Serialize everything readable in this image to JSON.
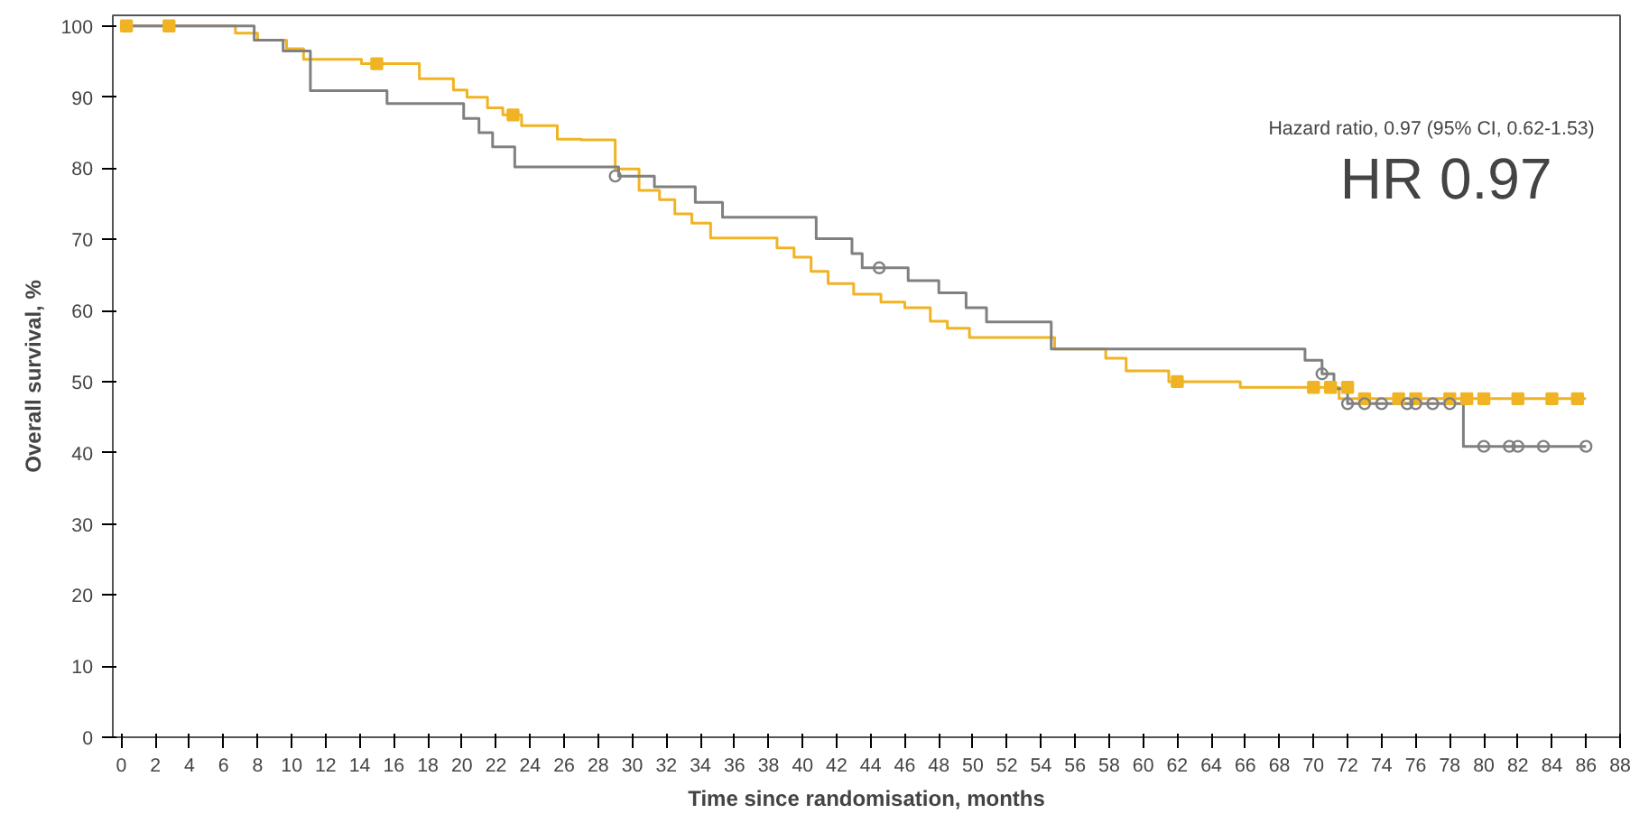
{
  "chart_data": {
    "type": "step",
    "xlabel": "Time since randomisation, months",
    "ylabel": "Overall survival, %",
    "annotations": [
      "Hazard ratio, 0.97 (95% CI, 0.62-1.53)",
      "HR 0.97"
    ],
    "xlim": [
      -0.5,
      88
    ],
    "ylim": [
      0,
      101.5
    ],
    "xticks": [
      0,
      2,
      4,
      6,
      8,
      10,
      12,
      14,
      16,
      18,
      20,
      22,
      24,
      26,
      28,
      30,
      32,
      34,
      36,
      38,
      40,
      42,
      44,
      46,
      48,
      50,
      52,
      54,
      56,
      58,
      60,
      62,
      64,
      66,
      68,
      70,
      72,
      74,
      76,
      78,
      80,
      82,
      84,
      86,
      88
    ],
    "yticks": [
      0,
      10,
      20,
      30,
      40,
      50,
      60,
      70,
      80,
      90,
      100
    ],
    "grid": false,
    "marker": "none",
    "line_style": "solid",
    "series": [
      {
        "color": "#f0b323",
        "x": [
          0,
          6.7,
          8,
          9.7,
          10.7,
          14.1,
          17.5,
          19.5,
          20.3,
          21.5,
          22.4,
          23.5,
          25.6,
          27,
          29,
          30.4,
          31.6,
          32.5,
          33.5,
          34.6,
          38.5,
          39.5,
          40.5,
          41.5,
          43,
          44.6,
          46,
          47.5,
          48.5,
          49.8,
          54.8,
          57.8,
          59,
          61.5,
          65.7,
          71.5,
          86
        ],
        "values": [
          100,
          99,
          98,
          96.8,
          95.3,
          94.7,
          92.6,
          91,
          90,
          88.5,
          87.5,
          86,
          84.1,
          84,
          79.9,
          76.9,
          75.6,
          73.6,
          72.3,
          70.2,
          68.8,
          67.5,
          65.5,
          63.8,
          62.3,
          61.2,
          60.4,
          58.5,
          57.5,
          56.2,
          54.6,
          53.3,
          51.5,
          50,
          49.2,
          47.6,
          47.6
        ]
      },
      {
        "color": "#808080",
        "x": [
          0,
          7.8,
          9.5,
          11.1,
          15.6,
          20.1,
          21,
          21.8,
          23.1,
          29.2,
          31.3,
          33.7,
          35.3,
          40.8,
          42.9,
          43.5,
          46.2,
          48,
          49.6,
          50.8,
          54.6,
          69.5,
          70.5,
          71.2,
          72,
          78.8,
          86
        ],
        "values": [
          100,
          98,
          96.5,
          90.9,
          89.1,
          87,
          85,
          83,
          80.2,
          78.9,
          77.4,
          75.2,
          73.1,
          70.1,
          68,
          66,
          64.2,
          62.5,
          60.4,
          58.4,
          54.6,
          53,
          51.1,
          49,
          46.9,
          40.9,
          40.9
        ]
      },
      {
        "type": "scatter",
        "marker": "square",
        "color": "#f0b323",
        "x": [
          0.3,
          2.8,
          15,
          23,
          62,
          70,
          71,
          72,
          73,
          75,
          76,
          78,
          79,
          80,
          82,
          84,
          85.5
        ],
        "values": [
          100,
          100,
          94.7,
          87.5,
          50,
          49.2,
          49.2,
          49.2,
          47.6,
          47.6,
          47.6,
          47.6,
          47.6,
          47.6,
          47.6,
          47.6,
          47.6
        ]
      },
      {
        "type": "scatter",
        "marker": "circle",
        "color": "#808080",
        "x": [
          29,
          44.5,
          70.5,
          72,
          73,
          74,
          75.5,
          76,
          77,
          78,
          80,
          81.5,
          82,
          83.5,
          86
        ],
        "values": [
          78.9,
          66,
          51.1,
          46.9,
          46.9,
          46.9,
          46.9,
          46.9,
          46.9,
          46.9,
          40.9,
          40.9,
          40.9,
          40.9,
          40.9
        ]
      }
    ]
  }
}
